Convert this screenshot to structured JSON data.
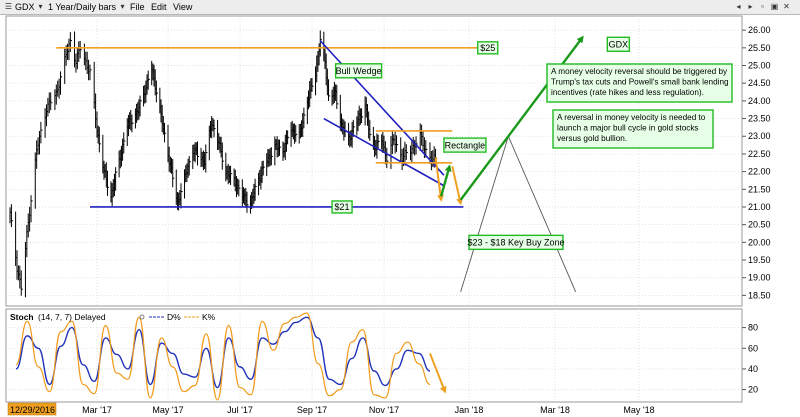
{
  "titlebar": {
    "symbol": "GDX",
    "period": "1 Year/Daily bars",
    "menu": [
      "File",
      "Edit",
      "View"
    ]
  },
  "colors": {
    "price_bars": "#000000",
    "orange_lines": "#f0a020",
    "blue_lines": "#2020c0",
    "green_arrows": "#1a9a1a",
    "label_box_bg": "#e6ffe6",
    "label_box_border": "#22bb22",
    "stoch_d": "#2233bb",
    "stoch_k": "#f29a1a"
  },
  "chart_data": [
    {
      "type": "line",
      "subtype": "daily-price-bars",
      "symbol": "GDX",
      "xlabels": [
        "12/29/2016",
        "Mar '17",
        "May '17",
        "Jul '17",
        "Sep '17",
        "Nov '17",
        "Jan '18",
        "Mar '18",
        "May '18"
      ],
      "ylim": [
        18.2,
        26.4
      ],
      "yticks": [
        "26.00",
        "25.50",
        "25.00",
        "24.50",
        "24.00",
        "23.50",
        "23.00",
        "22.50",
        "22.00",
        "21.50",
        "21.00",
        "20.50",
        "20.00",
        "19.50",
        "19.00",
        "18.50"
      ],
      "grid": true,
      "price_path": [
        [
          "12/29/2016",
          20.8
        ],
        [
          "2017-01-03",
          19.3
        ],
        [
          "2017-01-06",
          18.7
        ],
        [
          "2017-01-10",
          20.2
        ],
        [
          "2017-01-17",
          22.6
        ],
        [
          "2017-01-24",
          23.8
        ],
        [
          "2017-01-31",
          24.2
        ],
        [
          "2017-02-07",
          25.3
        ],
        [
          "2017-02-10",
          25.7
        ],
        [
          "2017-02-14",
          25.1
        ],
        [
          "2017-02-17",
          25.5
        ],
        [
          "2017-02-24",
          24.8
        ],
        [
          "2017-03-01",
          23.2
        ],
        [
          "2017-03-07",
          22.0
        ],
        [
          "2017-03-13",
          21.3
        ],
        [
          "2017-03-20",
          22.3
        ],
        [
          "2017-03-27",
          23.3
        ],
        [
          "2017-04-05",
          23.7
        ],
        [
          "2017-04-12",
          24.4
        ],
        [
          "2017-04-17",
          24.9
        ],
        [
          "2017-04-21",
          24.3
        ],
        [
          "2017-04-27",
          23.2
        ],
        [
          "2017-05-04",
          22.0
        ],
        [
          "2017-05-09",
          21.1
        ],
        [
          "2017-05-15",
          21.8
        ],
        [
          "2017-05-22",
          22.6
        ],
        [
          "2017-06-01",
          22.3
        ],
        [
          "2017-06-07",
          23.4
        ],
        [
          "2017-06-13",
          22.8
        ],
        [
          "2017-06-19",
          22.0
        ],
        [
          "2017-06-27",
          21.7
        ],
        [
          "2017-07-03",
          21.3
        ],
        [
          "2017-07-10",
          21.1
        ],
        [
          "2017-07-17",
          21.8
        ],
        [
          "2017-07-24",
          22.3
        ],
        [
          "2017-07-31",
          22.7
        ],
        [
          "2017-08-07",
          22.6
        ],
        [
          "2017-08-14",
          23.2
        ],
        [
          "2017-08-21",
          23.0
        ],
        [
          "2017-08-28",
          24.0
        ],
        [
          "2017-09-04",
          24.8
        ],
        [
          "2017-09-08",
          25.7
        ],
        [
          "2017-09-12",
          25.1
        ],
        [
          "2017-09-15",
          24.1
        ],
        [
          "2017-09-21",
          24.2
        ],
        [
          "2017-09-26",
          23.3
        ],
        [
          "2017-10-02",
          22.9
        ],
        [
          "2017-10-06",
          23.2
        ],
        [
          "2017-10-12",
          23.6
        ],
        [
          "2017-10-16",
          23.9
        ],
        [
          "2017-10-20",
          23.0
        ],
        [
          "2017-10-25",
          22.7
        ],
        [
          "2017-10-30",
          22.9
        ],
        [
          "2017-11-03",
          22.4
        ],
        [
          "2017-11-08",
          22.9
        ],
        [
          "2017-11-14",
          22.4
        ],
        [
          "2017-11-20",
          22.6
        ],
        [
          "2017-11-27",
          23.0
        ],
        [
          "2017-12-01",
          22.6
        ],
        [
          "2017-12-06",
          22.3
        ],
        [
          "2017-12-08",
          22.4
        ]
      ],
      "lines": [
        {
          "name": "resistance",
          "color": "orange",
          "x": [
            "2017-01-31",
            "2018-01-12"
          ],
          "y": [
            25.5,
            25.5
          ]
        },
        {
          "name": "support",
          "color": "blue",
          "x": [
            "2017-02-24",
            "2017-12-28"
          ],
          "y": [
            21.0,
            21.0
          ]
        },
        {
          "name": "wedge-upper",
          "color": "blue",
          "x": [
            "2017-09-08",
            "2017-12-14"
          ],
          "y": [
            25.7,
            21.9
          ]
        },
        {
          "name": "wedge-lower",
          "color": "blue",
          "x": [
            "2017-09-11",
            "2017-12-14"
          ],
          "y": [
            23.5,
            21.6
          ]
        },
        {
          "name": "rectangle-top",
          "color": "orange",
          "x": [
            "2017-10-25",
            "2017-12-20"
          ],
          "y": [
            23.15,
            23.15
          ]
        },
        {
          "name": "rectangle-bottom",
          "color": "orange",
          "x": [
            "2017-10-25",
            "2017-12-20"
          ],
          "y": [
            22.25,
            22.25
          ]
        }
      ],
      "arrows": [
        {
          "color": "orange",
          "x": [
            "2017-12-08",
            "2017-12-12"
          ],
          "y": [
            22.4,
            21.2
          ]
        },
        {
          "color": "green",
          "x": [
            "2017-12-12",
            "2017-12-18"
          ],
          "y": [
            21.3,
            22.15
          ]
        },
        {
          "color": "orange",
          "x": [
            "2017-12-20",
            "2017-12-26"
          ],
          "y": [
            22.15,
            21.1
          ]
        },
        {
          "color": "green",
          "x": [
            "2017-12-26",
            "2018-03-21"
          ],
          "y": [
            21.2,
            25.8
          ]
        }
      ],
      "triangle": {
        "x": [
          "2017-12-26",
          "2018-01-28",
          "2018-03-16"
        ],
        "y": [
          18.6,
          23.0,
          18.6
        ]
      },
      "annotations": [
        {
          "id": "label-25",
          "text": "$25",
          "x": "2018-01-07",
          "y": 25.5
        },
        {
          "id": "label-21",
          "text": "$21",
          "x": "2017-09-18",
          "y": 21.0
        },
        {
          "id": "label-wedge",
          "text": "Bull Wedge",
          "x": "2017-09-21",
          "y": 24.85
        },
        {
          "id": "label-rect",
          "text": "Rectangle",
          "x": "2017-12-14",
          "y": 22.75
        },
        {
          "id": "label-gdx",
          "text": "GDX",
          "x": "2018-04-08",
          "y": 25.6
        },
        {
          "id": "label-zone",
          "text": "$23 - $18 Key Buy Zone",
          "x": "2018-01-01",
          "y": 20.0
        },
        {
          "id": "note-1",
          "text": "A money velocity reversal should be triggered by Trump's tax cuts and Powell's small bank lending incentives (rate hikes and less regulation)."
        },
        {
          "id": "note-2",
          "text": "A reversal in money velocity is needed to launch a major bull cycle in gold stocks versus gold bullion."
        }
      ]
    },
    {
      "type": "line",
      "title": "Stoch",
      "params": "(14, 7, 7) Delayed",
      "series": [
        {
          "name": "D%",
          "values": [
            40,
            72,
            60,
            25,
            62,
            80,
            44,
            28,
            70,
            54,
            40,
            78,
            25,
            65,
            55,
            35,
            32,
            60,
            22,
            70,
            42,
            30,
            70,
            64,
            76,
            85,
            90,
            70,
            30,
            25,
            50,
            70,
            38,
            24,
            40,
            58,
            55,
            38
          ]
        },
        {
          "name": "K%",
          "values": [
            44,
            86,
            42,
            18,
            76,
            86,
            25,
            16,
            82,
            36,
            30,
            90,
            12,
            70,
            42,
            18,
            24,
            74,
            10,
            82,
            22,
            15,
            86,
            58,
            84,
            90,
            94,
            45,
            14,
            20,
            66,
            78,
            15,
            12,
            55,
            66,
            45,
            25
          ]
        }
      ],
      "ylim": [
        8,
        98
      ],
      "yticks": [
        "80",
        "60",
        "40",
        "20"
      ],
      "legend": [
        "D%",
        "K%"
      ]
    }
  ]
}
